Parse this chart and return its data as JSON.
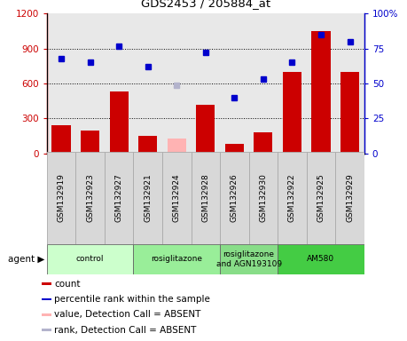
{
  "title": "GDS2453 / 205884_at",
  "samples": [
    "GSM132919",
    "GSM132923",
    "GSM132927",
    "GSM132921",
    "GSM132924",
    "GSM132928",
    "GSM132926",
    "GSM132930",
    "GSM132922",
    "GSM132925",
    "GSM132929"
  ],
  "counts": [
    240,
    200,
    530,
    150,
    130,
    420,
    80,
    185,
    700,
    1050,
    700
  ],
  "count_absent": [
    false,
    false,
    false,
    false,
    true,
    false,
    false,
    false,
    false,
    false,
    false
  ],
  "percentile": [
    68,
    65,
    77,
    62,
    49,
    72,
    40,
    53,
    65,
    85,
    80
  ],
  "percentile_absent": [
    false,
    false,
    false,
    false,
    true,
    false,
    false,
    false,
    false,
    false,
    false
  ],
  "bar_color_normal": "#cc0000",
  "bar_color_absent": "#ffb3b3",
  "dot_color_normal": "#0000cc",
  "dot_color_absent": "#b3b3cc",
  "ylim_left": [
    0,
    1200
  ],
  "ylim_right": [
    0,
    100
  ],
  "yticks_left": [
    0,
    300,
    600,
    900,
    1200
  ],
  "yticks_right": [
    0,
    25,
    50,
    75,
    100
  ],
  "ytick_labels_left": [
    "0",
    "300",
    "600",
    "900",
    "1200"
  ],
  "ytick_labels_right": [
    "0",
    "25",
    "50",
    "75",
    "100%"
  ],
  "agent_groups": [
    {
      "label": "control",
      "start": 0,
      "end": 3,
      "color": "#ccffcc"
    },
    {
      "label": "rosiglitazone",
      "start": 3,
      "end": 6,
      "color": "#99ee99"
    },
    {
      "label": "rosiglitazone\nand AGN193109",
      "start": 6,
      "end": 8,
      "color": "#88dd88"
    },
    {
      "label": "AM580",
      "start": 8,
      "end": 11,
      "color": "#44cc44"
    }
  ],
  "legend_items": [
    {
      "label": "count",
      "color": "#cc0000"
    },
    {
      "label": "percentile rank within the sample",
      "color": "#0000cc"
    },
    {
      "label": "value, Detection Call = ABSENT",
      "color": "#ffb3b3"
    },
    {
      "label": "rank, Detection Call = ABSENT",
      "color": "#b3b3cc"
    }
  ],
  "plot_bg": "#e8e8e8",
  "cell_bg": "#d8d8d8",
  "cell_border": "#aaaaaa"
}
